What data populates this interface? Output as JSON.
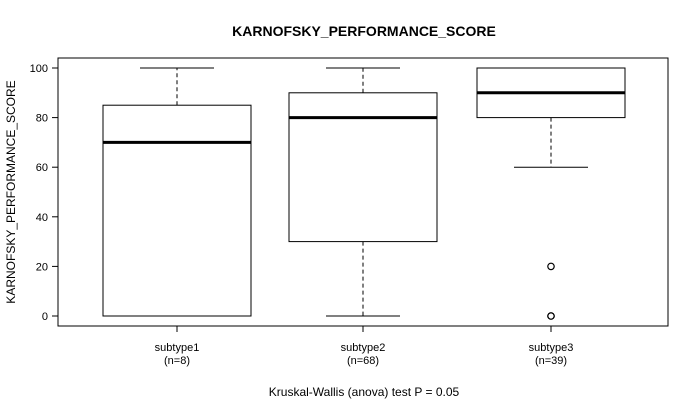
{
  "chart_data": {
    "type": "box",
    "title": "KARNOFSKY_PERFORMANCE_SCORE",
    "xlabel": "Kruskal-Wallis (anova) test P = 0.05",
    "ylabel": "KARNOFSKY_PERFORMANCE_SCORE",
    "ylim": [
      0,
      100
    ],
    "yticks": [
      0,
      20,
      40,
      60,
      80,
      100
    ],
    "grid": false,
    "categories": [
      "subtype1",
      "subtype2",
      "subtype3"
    ],
    "counts": [
      "(n=8)",
      "(n=68)",
      "(n=39)"
    ],
    "boxes": [
      {
        "name": "subtype1",
        "whisker_low": 0,
        "q1": 0,
        "median": 70,
        "q3": 85,
        "whisker_high": 100,
        "outliers": []
      },
      {
        "name": "subtype2",
        "whisker_low": 0,
        "q1": 30,
        "median": 80,
        "q3": 90,
        "whisker_high": 100,
        "outliers": []
      },
      {
        "name": "subtype3",
        "whisker_low": 60,
        "q1": 80,
        "median": 90,
        "q3": 100,
        "whisker_high": 100,
        "outliers": [
          20,
          0,
          0
        ]
      }
    ]
  }
}
